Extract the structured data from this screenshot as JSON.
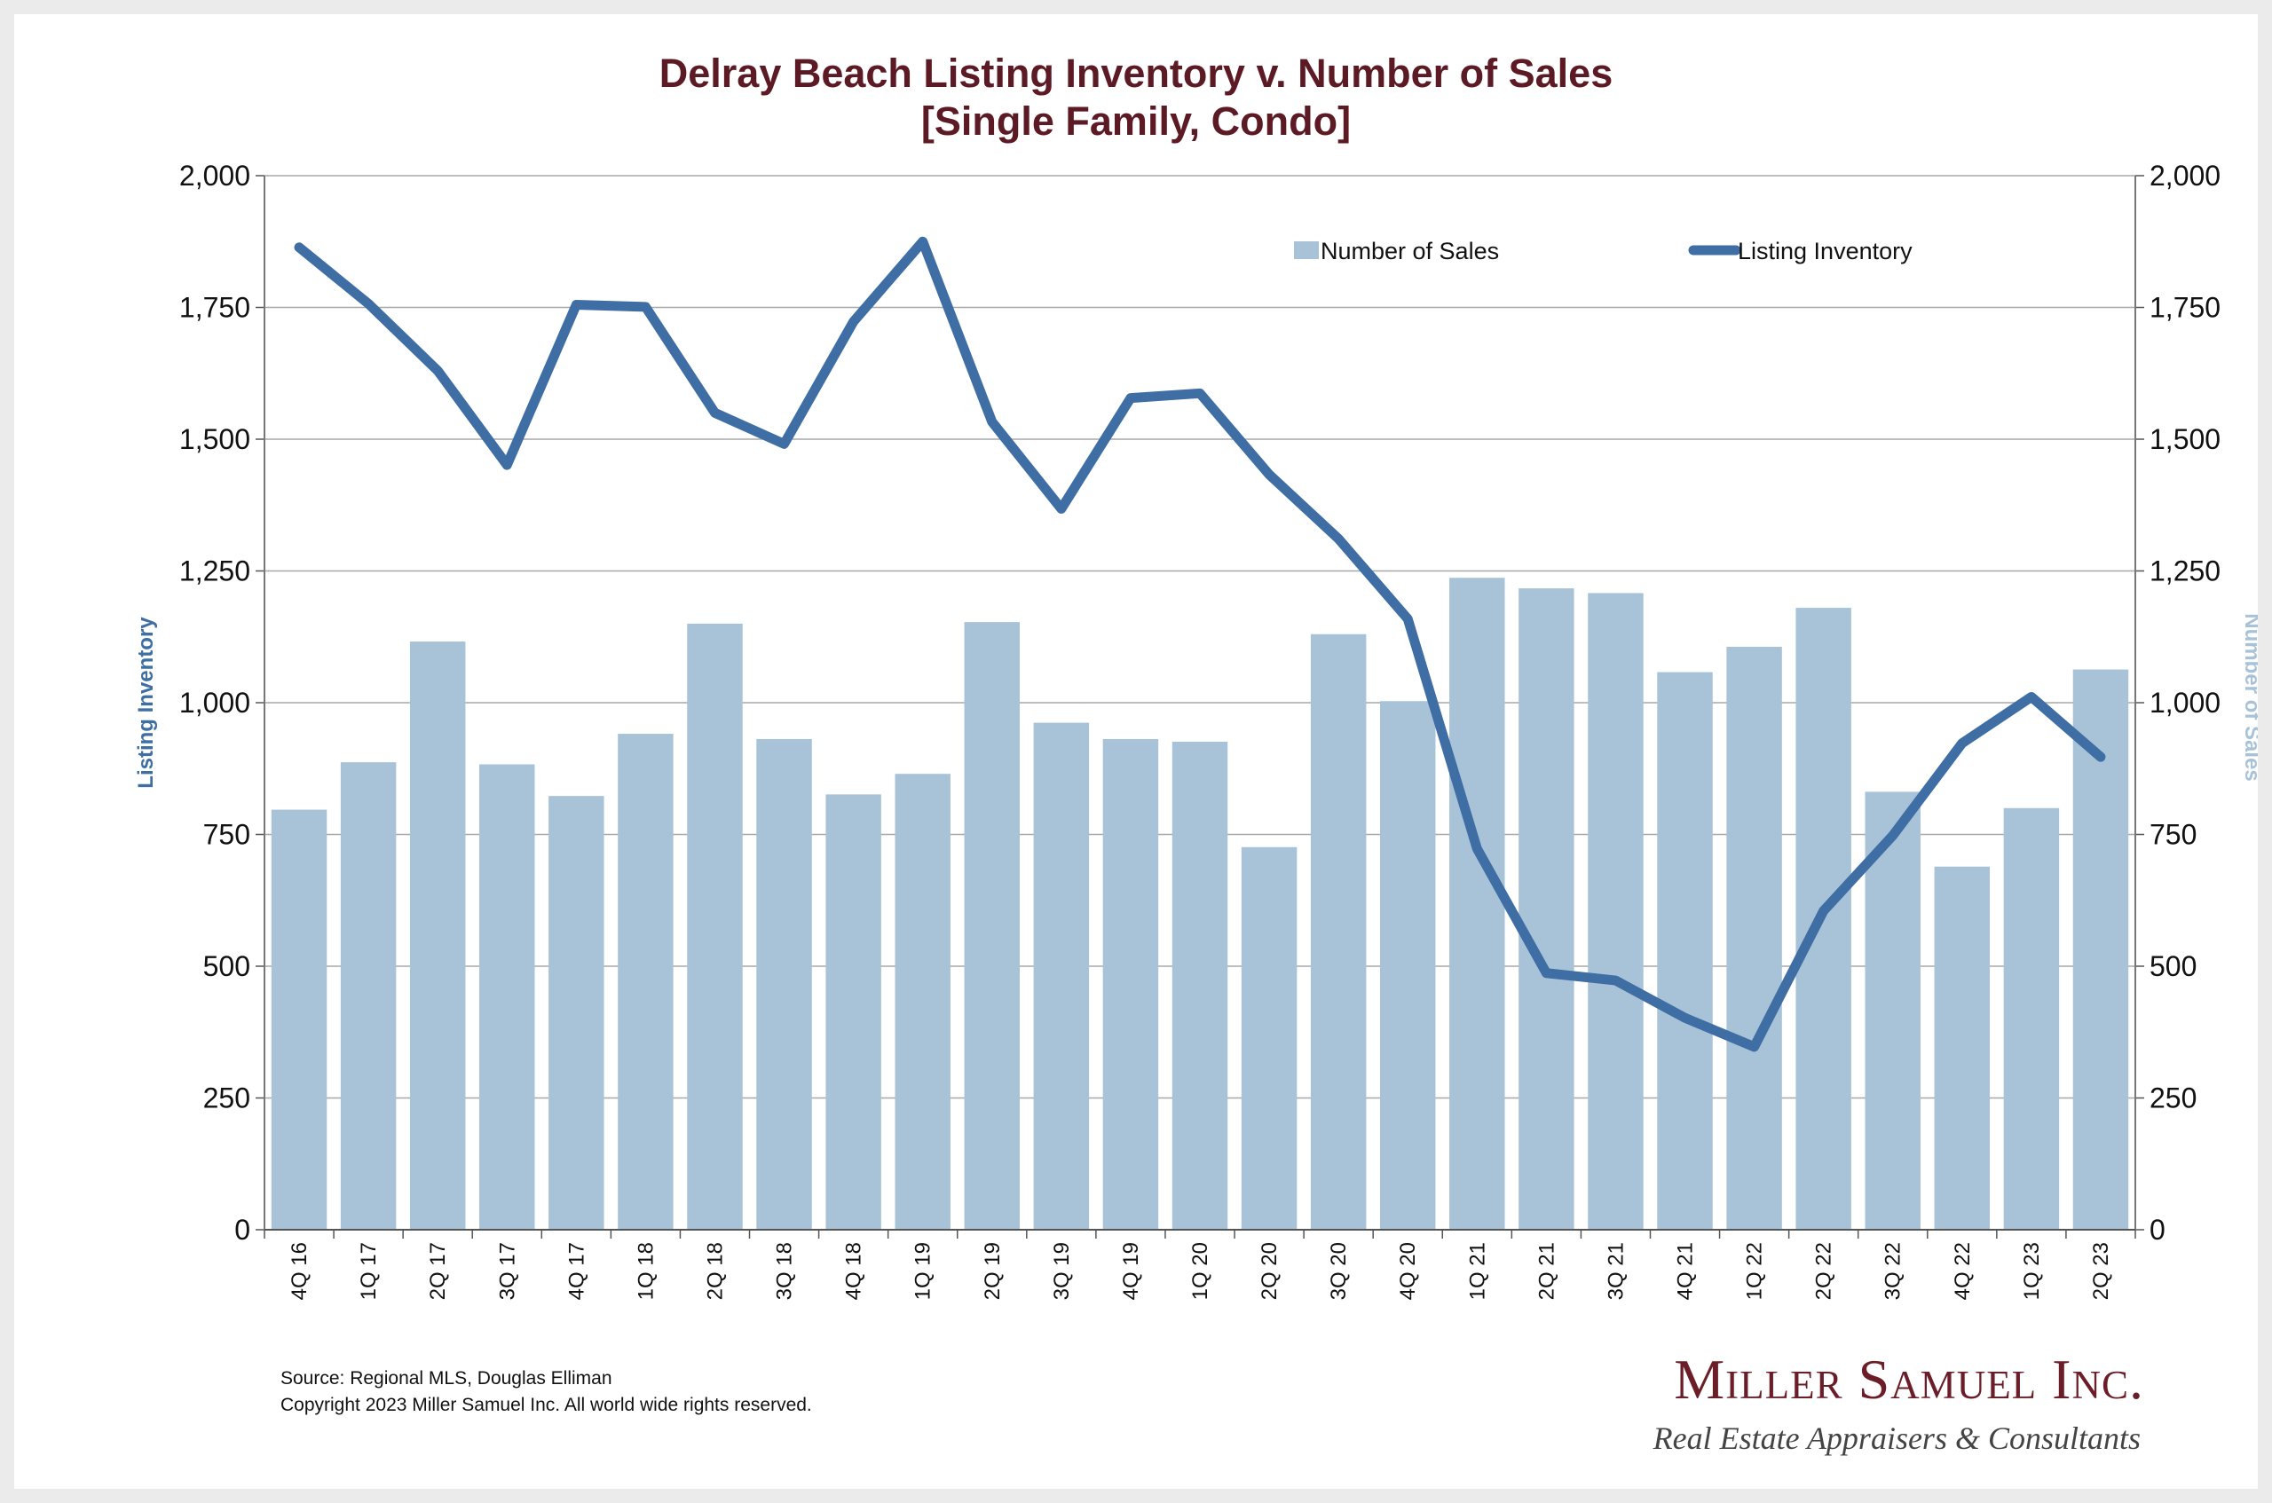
{
  "chart_data": {
    "type": "bar",
    "title": "Delray Beach Listing Inventory v. Number of Sales",
    "subtitle": "[Single Family, Condo]",
    "categories": [
      "4Q 16",
      "1Q 17",
      "2Q 17",
      "3Q 17",
      "4Q 17",
      "1Q 18",
      "2Q 18",
      "3Q 18",
      "4Q 18",
      "1Q 19",
      "2Q 19",
      "3Q 19",
      "4Q 19",
      "1Q 20",
      "2Q 20",
      "3Q 20",
      "4Q 20",
      "1Q 21",
      "2Q 21",
      "3Q 21",
      "4Q 21",
      "1Q 22",
      "2Q 22",
      "3Q 22",
      "4Q 22",
      "1Q 23",
      "2Q 23"
    ],
    "series": [
      {
        "name": "Number of Sales",
        "kind": "bar",
        "axis": "right",
        "color": "#a8c3d8",
        "values": [
          797,
          887,
          1116,
          883,
          823,
          941,
          1150,
          931,
          826,
          865,
          1153,
          962,
          931,
          926,
          726,
          1130,
          1003,
          1237,
          1217,
          1208,
          1058,
          1106,
          1180,
          831,
          689,
          800,
          1063
        ]
      },
      {
        "name": "Listing Inventory",
        "kind": "line",
        "axis": "left",
        "color": "#3e6ea3",
        "values": [
          1864,
          1757,
          1630,
          1451,
          1755,
          1751,
          1550,
          1491,
          1723,
          1875,
          1533,
          1368,
          1578,
          1587,
          1433,
          1311,
          1159,
          723,
          487,
          473,
          402,
          347,
          605,
          748,
          923,
          1011,
          897
        ]
      }
    ],
    "ylabel": "Listing Inventory",
    "y2label": "Number of Sales",
    "ylim": [
      0,
      2000
    ],
    "y2lim": [
      0,
      2000
    ],
    "yticks": [
      "0",
      "250",
      "500",
      "750",
      "1,000",
      "1,250",
      "1,500",
      "1,750",
      "2,000"
    ],
    "grid": true,
    "legend": "top-right"
  },
  "footer": {
    "source": "Source: Regional MLS, Douglas Elliman",
    "copyright": "Copyright 2023 Miller Samuel Inc.  All world wide rights reserved."
  },
  "logo": {
    "name": "Miller Samuel Inc.",
    "tagline": "Real Estate Appraisers & Consultants"
  }
}
